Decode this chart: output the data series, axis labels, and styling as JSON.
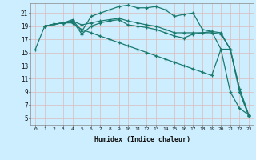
{
  "xlabel": "Humidex (Indice chaleur)",
  "bg_color": "#cceeff",
  "grid_color": "#ddbbbb",
  "line_color": "#1a7a6e",
  "xlim": [
    -0.5,
    23.5
  ],
  "ylim": [
    4,
    22.5
  ],
  "yticks": [
    5,
    7,
    9,
    11,
    13,
    15,
    17,
    19,
    21
  ],
  "xticks": [
    0,
    1,
    2,
    3,
    4,
    5,
    6,
    7,
    8,
    9,
    10,
    11,
    12,
    13,
    14,
    15,
    16,
    17,
    18,
    19,
    20,
    21,
    22,
    23
  ],
  "lines": [
    {
      "x": [
        0,
        1,
        2,
        3,
        4,
        5,
        6,
        7,
        8,
        9,
        10,
        11,
        12,
        13,
        14,
        15,
        16,
        17,
        18,
        19,
        20,
        21,
        22,
        23
      ],
      "y": [
        15.5,
        19.0,
        19.3,
        19.5,
        20.0,
        18.2,
        20.5,
        21.0,
        21.5,
        22.0,
        22.2,
        21.8,
        21.8,
        22.0,
        21.5,
        20.5,
        20.8,
        21.0,
        18.5,
        18.2,
        15.5,
        9.0,
        6.5,
        5.5
      ]
    },
    {
      "x": [
        1,
        2,
        3,
        4,
        5,
        6,
        7,
        8,
        9,
        10,
        11,
        12,
        13,
        14,
        15,
        16,
        17,
        18,
        19,
        20,
        21,
        22,
        23
      ],
      "y": [
        19.0,
        19.3,
        19.5,
        19.8,
        19.2,
        19.5,
        19.8,
        20.0,
        20.2,
        19.8,
        19.5,
        19.2,
        19.0,
        18.5,
        18.0,
        18.0,
        18.0,
        18.0,
        18.0,
        17.8,
        15.5,
        9.5,
        5.5
      ]
    },
    {
      "x": [
        1,
        2,
        3,
        4,
        5,
        6,
        7,
        8,
        9,
        10,
        11,
        12,
        13,
        14,
        15,
        16,
        17,
        18,
        19,
        20,
        21,
        22,
        23
      ],
      "y": [
        19.0,
        19.3,
        19.5,
        19.8,
        17.8,
        19.0,
        19.5,
        19.8,
        20.0,
        19.2,
        19.0,
        18.8,
        18.5,
        18.0,
        17.5,
        17.2,
        17.8,
        18.0,
        18.2,
        18.0,
        15.5,
        9.5,
        5.3
      ]
    },
    {
      "x": [
        1,
        2,
        3,
        4,
        5,
        6,
        7,
        8,
        9,
        10,
        11,
        12,
        13,
        14,
        15,
        16,
        17,
        18,
        19,
        20,
        21,
        22,
        23
      ],
      "y": [
        19.0,
        19.3,
        19.5,
        19.5,
        18.5,
        18.0,
        17.5,
        17.0,
        16.5,
        16.0,
        15.5,
        15.0,
        14.5,
        14.0,
        13.5,
        13.0,
        12.5,
        12.0,
        11.5,
        15.5,
        15.5,
        9.0,
        5.3
      ]
    }
  ]
}
